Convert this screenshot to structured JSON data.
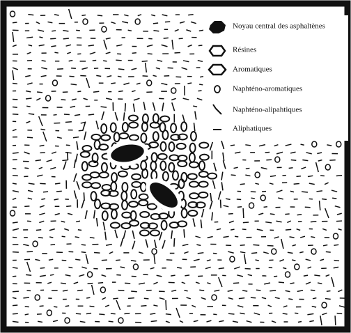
{
  "legend": {
    "items": [
      {
        "label": "Noyau central des asphaltènes"
      },
      {
        "label": "Résines"
      },
      {
        "label": "Aromatiques"
      },
      {
        "label": "Naphténo-aromatiques"
      },
      {
        "label": "Naphténo-alipahtiques"
      },
      {
        "label": "Aliphatiques"
      }
    ]
  }
}
